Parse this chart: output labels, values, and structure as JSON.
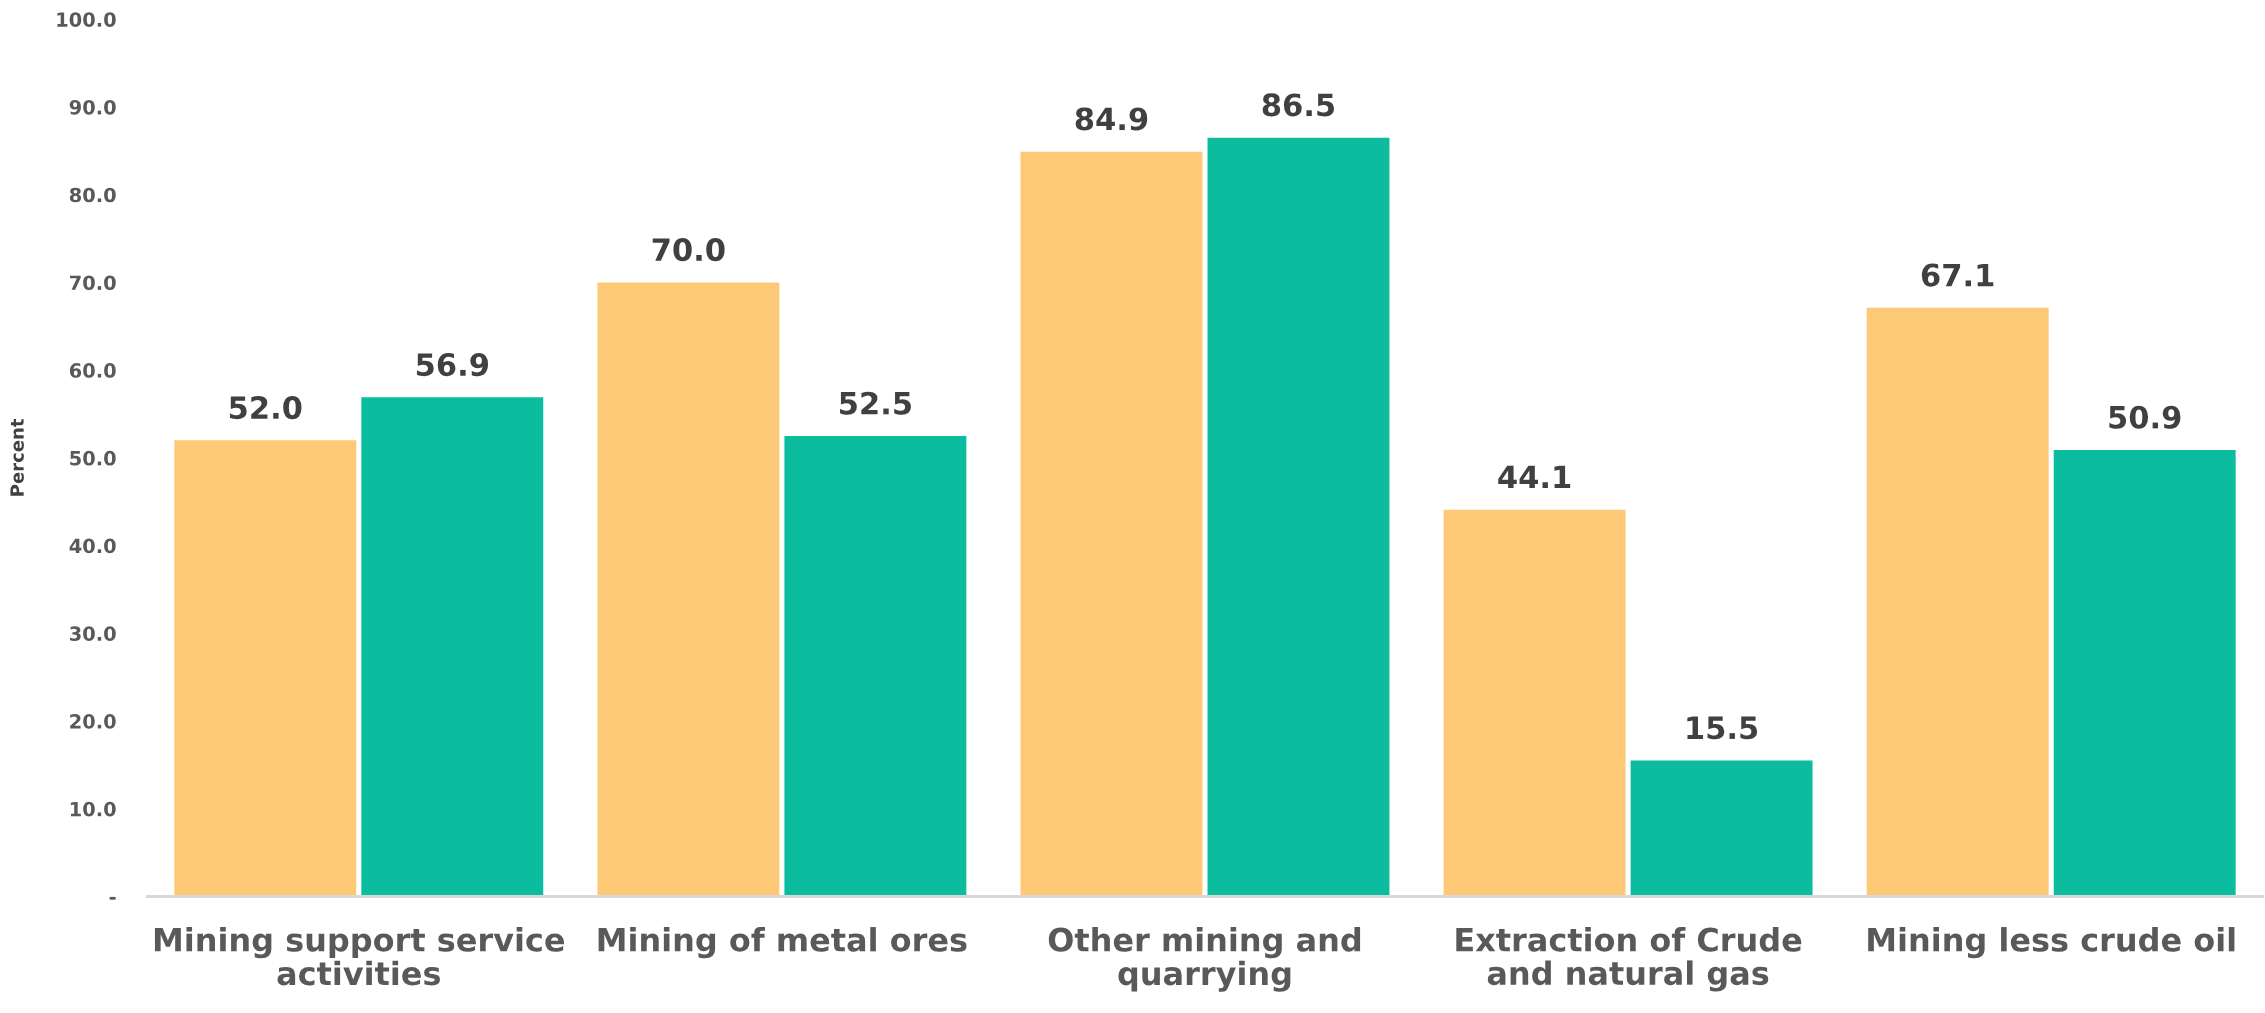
{
  "chart_data": {
    "type": "bar",
    "ylabel": "Percent",
    "categories": [
      "Mining support service\nactivities",
      "Mining of metal ores",
      "Other mining and\nquarrying",
      "Extraction of Crude\nand natural gas",
      "Mining less crude oil"
    ],
    "series": [
      {
        "color": "#fdc977",
        "values": [
          52.0,
          70.0,
          84.9,
          44.1,
          67.1
        ],
        "value_labels": [
          "52.0",
          "70.0",
          "84.9",
          "44.1",
          "67.1"
        ]
      },
      {
        "color": "#0bbc9f",
        "values": [
          56.9,
          52.5,
          86.5,
          15.5,
          50.9
        ],
        "value_labels": [
          "56.9",
          "52.5",
          "86.5",
          "15.5",
          "50.9"
        ]
      }
    ],
    "ylim": [
      0,
      100
    ],
    "yticks": [
      {
        "value": 0,
        "label": "-"
      },
      {
        "value": 10,
        "label": "10.0"
      },
      {
        "value": 20,
        "label": "20.0"
      },
      {
        "value": 30,
        "label": "30.0"
      },
      {
        "value": 40,
        "label": "40.0"
      },
      {
        "value": 50,
        "label": "50.0"
      },
      {
        "value": 60,
        "label": "60.0"
      },
      {
        "value": 70,
        "label": "70.0"
      },
      {
        "value": 80,
        "label": "80.0"
      },
      {
        "value": 90,
        "label": "90.0"
      },
      {
        "value": 100,
        "label": "100.0"
      }
    ],
    "grid": false,
    "legend": false
  }
}
